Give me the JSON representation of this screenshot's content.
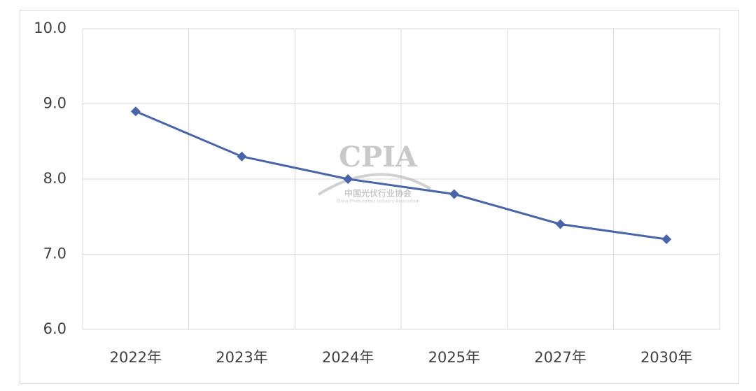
{
  "chart_data": {
    "type": "line",
    "categories": [
      "2022年",
      "2023年",
      "2024年",
      "2025年",
      "2027年",
      "2030年"
    ],
    "series": [
      {
        "color": "#4a64a8",
        "values": [
          8.9,
          8.3,
          8.0,
          7.8,
          7.4,
          7.2
        ]
      }
    ],
    "ylim": [
      6,
      10
    ],
    "yticks": [
      {
        "value": 6,
        "label": "6.0"
      },
      {
        "value": 7,
        "label": "7.0"
      },
      {
        "value": 8,
        "label": "8.0"
      },
      {
        "value": 9,
        "label": "9.0"
      },
      {
        "value": 10,
        "label": "10.0"
      }
    ],
    "grid": true,
    "watermark": {
      "logo": "CPIA",
      "name_cn": "中国光伏行业协会",
      "name_en": "China Photovoltaic Industry Association"
    }
  }
}
